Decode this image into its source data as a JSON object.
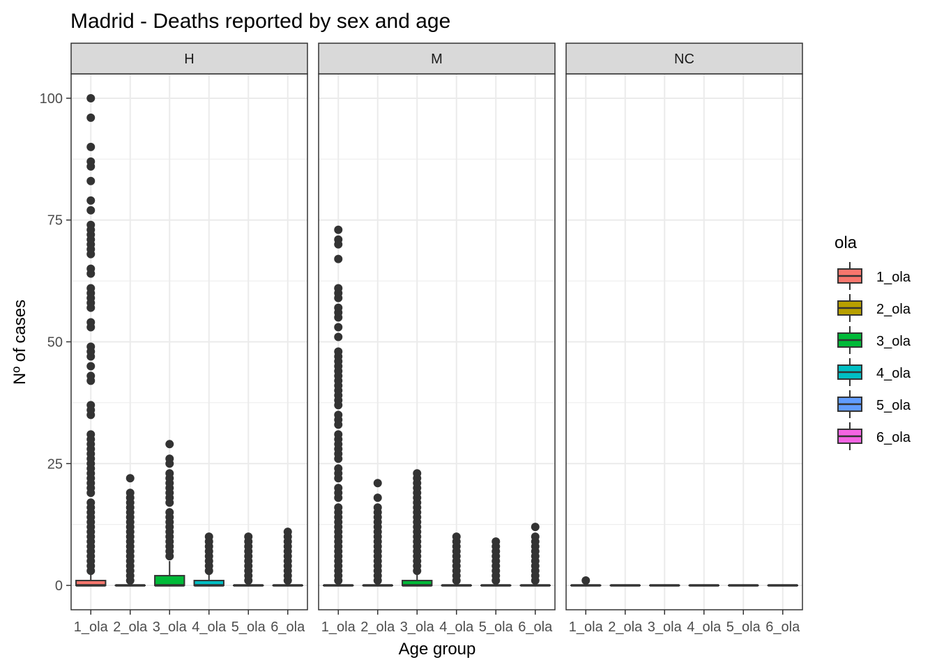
{
  "chart_data": {
    "type": "boxplot",
    "title": "Madrid - Deaths reported by sex and age",
    "xlabel": "Age group",
    "ylabel": "Nº of cases",
    "ylim": [
      -5,
      105
    ],
    "yticks": [
      0,
      25,
      50,
      75,
      100
    ],
    "grid": true,
    "legend": {
      "title": "ola",
      "position": "right",
      "entries": [
        "1_ola",
        "2_ola",
        "3_ola",
        "4_ola",
        "5_ola",
        "6_ola"
      ]
    },
    "categories": [
      "1_ola",
      "2_ola",
      "3_ola",
      "4_ola",
      "5_ola",
      "6_ola"
    ],
    "colors": {
      "1_ola": "#F8766D",
      "2_ola": "#B79F00",
      "3_ola": "#00BA38",
      "4_ola": "#00BFC4",
      "5_ola": "#619CFF",
      "6_ola": "#F564E3"
    },
    "panels": [
      {
        "name": "H",
        "boxes": [
          {
            "category": "1_ola",
            "min": 0,
            "q1": 0,
            "median": 0,
            "q3": 1,
            "max": 2.5,
            "outliers": [
              3,
              4,
              5,
              6,
              7,
              8,
              9,
              10,
              11,
              12,
              13,
              14,
              15,
              16,
              17,
              19,
              20,
              21,
              22,
              23,
              24,
              25,
              26,
              27,
              28,
              29,
              30,
              31,
              35,
              36,
              37,
              42,
              43,
              45,
              47,
              48,
              49,
              53,
              54,
              57,
              58,
              59,
              60,
              61,
              64,
              65,
              68,
              69,
              70,
              71,
              72,
              73,
              74,
              77,
              79,
              83,
              86,
              87,
              90,
              96,
              100
            ]
          },
          {
            "category": "2_ola",
            "min": 0,
            "q1": 0,
            "median": 0,
            "q3": 0,
            "max": 0,
            "outliers": [
              1,
              2,
              3,
              4,
              5,
              6,
              7,
              8,
              9,
              10,
              11,
              12,
              13,
              14,
              15,
              16,
              17,
              18,
              19,
              22
            ]
          },
          {
            "category": "3_ola",
            "min": 0,
            "q1": 0,
            "median": 0,
            "q3": 2,
            "max": 5,
            "outliers": [
              6,
              7,
              8,
              9,
              10,
              11,
              12,
              13,
              14,
              15,
              17,
              18,
              19,
              20,
              21,
              22,
              23,
              25,
              26,
              29
            ]
          },
          {
            "category": "4_ola",
            "min": 0,
            "q1": 0,
            "median": 0,
            "q3": 1,
            "max": 2.5,
            "outliers": [
              3,
              4,
              5,
              6,
              7,
              8,
              9,
              10
            ]
          },
          {
            "category": "5_ola",
            "min": 0,
            "q1": 0,
            "median": 0,
            "q3": 0,
            "max": 0,
            "outliers": [
              1,
              2,
              3,
              4,
              5,
              6,
              7,
              8,
              9,
              10
            ]
          },
          {
            "category": "6_ola",
            "min": 0,
            "q1": 0,
            "median": 0,
            "q3": 0,
            "max": 0,
            "outliers": [
              1,
              2,
              3,
              4,
              5,
              6,
              7,
              8,
              9,
              10,
              11
            ]
          }
        ]
      },
      {
        "name": "M",
        "boxes": [
          {
            "category": "1_ola",
            "min": 0,
            "q1": 0,
            "median": 0,
            "q3": 0,
            "max": 0,
            "outliers": [
              1,
              2,
              3,
              4,
              5,
              6,
              7,
              8,
              9,
              10,
              11,
              12,
              13,
              14,
              15,
              16,
              18,
              19,
              20,
              22,
              23,
              24,
              26,
              27,
              28,
              29,
              30,
              31,
              33,
              34,
              35,
              37,
              38,
              39,
              40,
              41,
              42,
              43,
              44,
              45,
              46,
              47,
              48,
              51,
              53,
              55,
              56,
              57,
              59,
              60,
              61,
              67,
              70,
              71,
              73
            ]
          },
          {
            "category": "2_ola",
            "min": 0,
            "q1": 0,
            "median": 0,
            "q3": 0,
            "max": 0,
            "outliers": [
              1,
              2,
              3,
              4,
              5,
              6,
              7,
              8,
              9,
              10,
              11,
              12,
              13,
              14,
              15,
              16,
              18,
              21
            ]
          },
          {
            "category": "3_ola",
            "min": 0,
            "q1": 0,
            "median": 0,
            "q3": 1,
            "max": 2.5,
            "outliers": [
              3,
              4,
              5,
              6,
              7,
              8,
              9,
              10,
              11,
              12,
              13,
              14,
              15,
              16,
              17,
              18,
              19,
              20,
              21,
              22,
              23
            ]
          },
          {
            "category": "4_ola",
            "min": 0,
            "q1": 0,
            "median": 0,
            "q3": 0,
            "max": 0,
            "outliers": [
              1,
              2,
              3,
              4,
              5,
              6,
              7,
              8,
              9,
              10
            ]
          },
          {
            "category": "5_ola",
            "min": 0,
            "q1": 0,
            "median": 0,
            "q3": 0,
            "max": 0,
            "outliers": [
              1,
              2,
              3,
              4,
              5,
              6,
              7,
              8,
              9
            ]
          },
          {
            "category": "6_ola",
            "min": 0,
            "q1": 0,
            "median": 0,
            "q3": 0,
            "max": 0,
            "outliers": [
              1,
              2,
              3,
              4,
              5,
              6,
              7,
              8,
              9,
              10,
              12
            ]
          }
        ]
      },
      {
        "name": "NC",
        "boxes": [
          {
            "category": "1_ola",
            "min": 0,
            "q1": 0,
            "median": 0,
            "q3": 0,
            "max": 0,
            "outliers": [
              1
            ]
          },
          {
            "category": "2_ola",
            "min": 0,
            "q1": 0,
            "median": 0,
            "q3": 0,
            "max": 0,
            "outliers": []
          },
          {
            "category": "3_ola",
            "min": 0,
            "q1": 0,
            "median": 0,
            "q3": 0,
            "max": 0,
            "outliers": []
          },
          {
            "category": "4_ola",
            "min": 0,
            "q1": 0,
            "median": 0,
            "q3": 0,
            "max": 0,
            "outliers": []
          },
          {
            "category": "5_ola",
            "min": 0,
            "q1": 0,
            "median": 0,
            "q3": 0,
            "max": 0,
            "outliers": []
          },
          {
            "category": "6_ola",
            "min": 0,
            "q1": 0,
            "median": 0,
            "q3": 0,
            "max": 0,
            "outliers": []
          }
        ]
      }
    ]
  }
}
